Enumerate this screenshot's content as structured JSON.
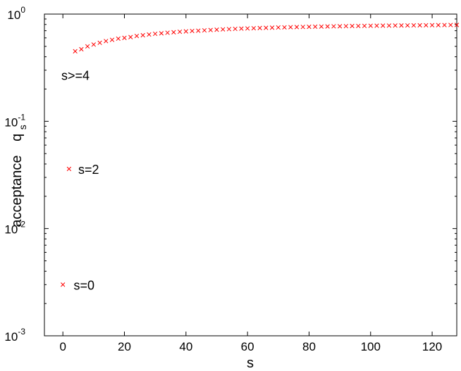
{
  "chart_data": {
    "type": "scatter",
    "xlabel": "s",
    "ylabel": "acceptance",
    "ylabel_symbol": "q",
    "ylabel_subscript": "s",
    "xlim": [
      -6,
      128
    ],
    "ylim": [
      0.001,
      1
    ],
    "yscale": "log",
    "grid": false,
    "marker": "x",
    "marker_color": "#ff0000",
    "x_ticks": [
      0,
      20,
      40,
      60,
      80,
      100,
      120
    ],
    "y_ticks": [
      {
        "value": 0.001,
        "base": "10",
        "exp": "-3"
      },
      {
        "value": 0.01,
        "base": "10",
        "exp": "-2"
      },
      {
        "value": 0.1,
        "base": "10",
        "exp": "-1"
      },
      {
        "value": 1,
        "base": "10",
        "exp": "0"
      }
    ],
    "series": [
      {
        "points": [
          [
            0,
            0.003
          ],
          [
            2,
            0.036
          ],
          [
            4,
            0.45
          ],
          [
            6,
            0.47
          ],
          [
            8,
            0.5
          ],
          [
            10,
            0.52
          ],
          [
            12,
            0.54
          ],
          [
            14,
            0.56
          ],
          [
            16,
            0.575
          ],
          [
            18,
            0.59
          ],
          [
            20,
            0.6
          ],
          [
            22,
            0.61
          ],
          [
            24,
            0.625
          ],
          [
            26,
            0.635
          ],
          [
            28,
            0.645
          ],
          [
            30,
            0.655
          ],
          [
            32,
            0.662
          ],
          [
            34,
            0.67
          ],
          [
            36,
            0.677
          ],
          [
            38,
            0.684
          ],
          [
            40,
            0.69
          ],
          [
            42,
            0.696
          ],
          [
            44,
            0.7
          ],
          [
            46,
            0.705
          ],
          [
            48,
            0.71
          ],
          [
            50,
            0.715
          ],
          [
            52,
            0.72
          ],
          [
            54,
            0.724
          ],
          [
            56,
            0.728
          ],
          [
            58,
            0.732
          ],
          [
            60,
            0.735
          ],
          [
            62,
            0.738
          ],
          [
            64,
            0.741
          ],
          [
            66,
            0.744
          ],
          [
            68,
            0.747
          ],
          [
            70,
            0.75
          ],
          [
            72,
            0.752
          ],
          [
            74,
            0.755
          ],
          [
            76,
            0.757
          ],
          [
            78,
            0.759
          ],
          [
            80,
            0.761
          ],
          [
            82,
            0.763
          ],
          [
            84,
            0.765
          ],
          [
            86,
            0.767
          ],
          [
            88,
            0.769
          ],
          [
            90,
            0.77
          ],
          [
            92,
            0.772
          ],
          [
            94,
            0.774
          ],
          [
            96,
            0.775
          ],
          [
            98,
            0.776
          ],
          [
            100,
            0.778
          ],
          [
            102,
            0.779
          ],
          [
            104,
            0.78
          ],
          [
            106,
            0.781
          ],
          [
            108,
            0.782
          ],
          [
            110,
            0.783
          ],
          [
            112,
            0.784
          ],
          [
            114,
            0.785
          ],
          [
            116,
            0.786
          ],
          [
            118,
            0.787
          ],
          [
            120,
            0.788
          ],
          [
            122,
            0.789
          ],
          [
            124,
            0.79
          ],
          [
            126,
            0.791
          ],
          [
            128,
            0.792
          ]
        ]
      }
    ],
    "annotations": [
      {
        "text": "s>=4",
        "x": -0.5,
        "y": 0.27
      },
      {
        "text": "s=2",
        "x": 5,
        "y": 0.036
      },
      {
        "text": "s=0",
        "x": 3.5,
        "y": 0.003
      }
    ]
  }
}
